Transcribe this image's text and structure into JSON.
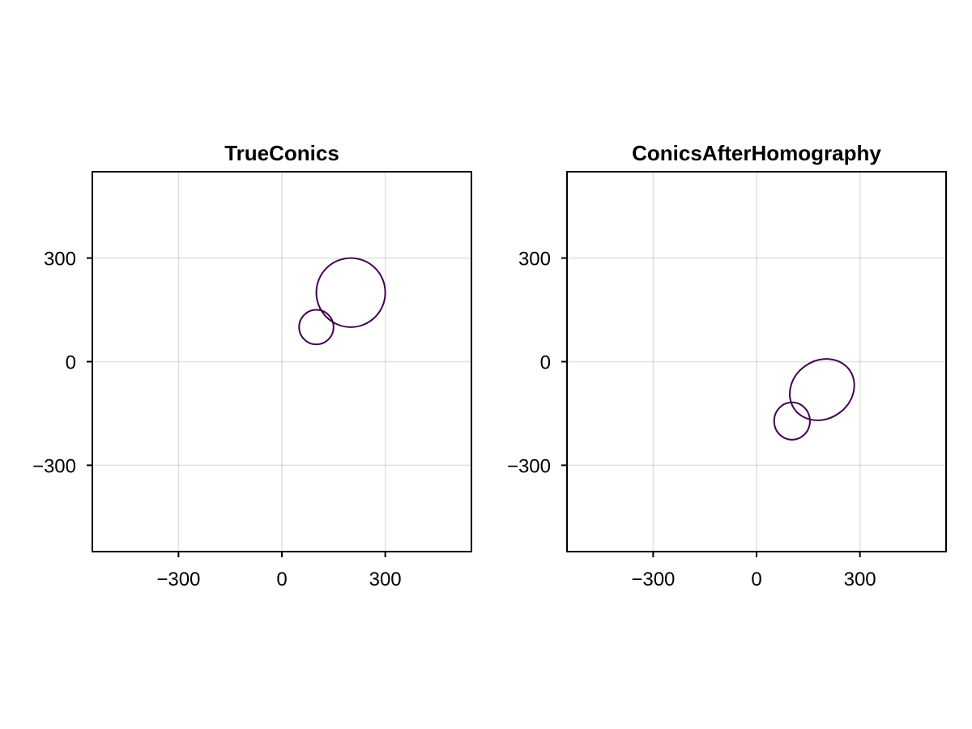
{
  "chart_data": [
    {
      "type": "line",
      "title": "TrueConics",
      "xlim": [
        -550,
        550
      ],
      "ylim": [
        -550,
        550
      ],
      "xticks": [
        -300,
        0,
        300
      ],
      "yticks": [
        -300,
        0,
        300
      ],
      "xtick_labels": [
        "−300",
        "0",
        "300"
      ],
      "ytick_labels": [
        "−300",
        "0",
        "300"
      ],
      "grid": true,
      "series": [
        {
          "kind": "ellipse",
          "cx": 200,
          "cy": 200,
          "rx": 100,
          "ry": 100,
          "angle": 0
        },
        {
          "kind": "ellipse",
          "cx": 100,
          "cy": 100,
          "rx": 50,
          "ry": 50,
          "angle": 0
        }
      ]
    },
    {
      "type": "line",
      "title": "ConicsAfterHomography",
      "xlim": [
        -550,
        550
      ],
      "ylim": [
        -550,
        550
      ],
      "xticks": [
        -300,
        0,
        300
      ],
      "yticks": [
        -300,
        0,
        300
      ],
      "xtick_labels": [
        "−300",
        "0",
        "300"
      ],
      "ytick_labels": [
        "−300",
        "0",
        "300"
      ],
      "grid": true,
      "series": [
        {
          "kind": "ellipse",
          "cx": 190,
          "cy": -81,
          "rx": 98,
          "ry": 84,
          "angle": -35
        },
        {
          "kind": "ellipse",
          "cx": 103,
          "cy": -172,
          "rx": 52,
          "ry": 54,
          "angle": 0
        }
      ]
    }
  ],
  "colors": {
    "conic": "#440154",
    "axis": "#000000",
    "grid": "#e6e6e6",
    "background": "#ffffff"
  }
}
